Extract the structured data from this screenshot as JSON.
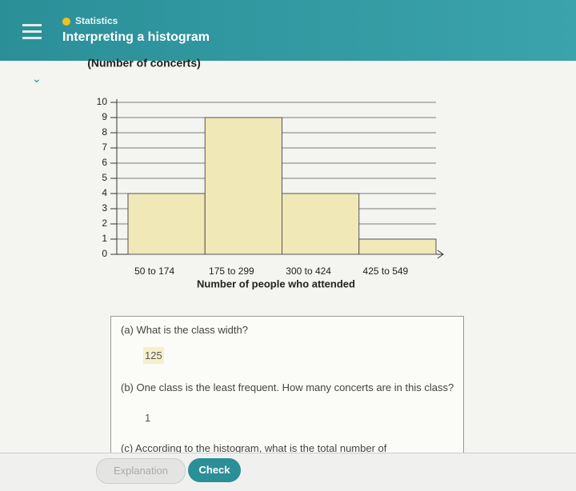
{
  "header": {
    "category": "Statistics",
    "title": "Interpreting a histogram"
  },
  "chart_data": {
    "type": "bar",
    "y_label": "(Number of concerts)",
    "x_label": "Number of people who attended",
    "categories": [
      "50 to 174",
      "175 to 299",
      "300 to 424",
      "425 to 549"
    ],
    "values": [
      4,
      9,
      4,
      1
    ],
    "color": "#f1e8b8",
    "ylim": [
      0,
      10
    ],
    "yticks": [
      0,
      1,
      2,
      3,
      4,
      5,
      6,
      7,
      8,
      9,
      10
    ],
    "grid": true
  },
  "questions": [
    {
      "prompt": "(a) What is the class width?",
      "answer": "125"
    },
    {
      "prompt": "(b) One class is the least frequent. How many concerts are in this class?",
      "answer": "1"
    },
    {
      "prompt": "(c) According to the histogram, what is the total number of"
    }
  ],
  "buttons": {
    "explanation": "Explanation",
    "check": "Check"
  }
}
